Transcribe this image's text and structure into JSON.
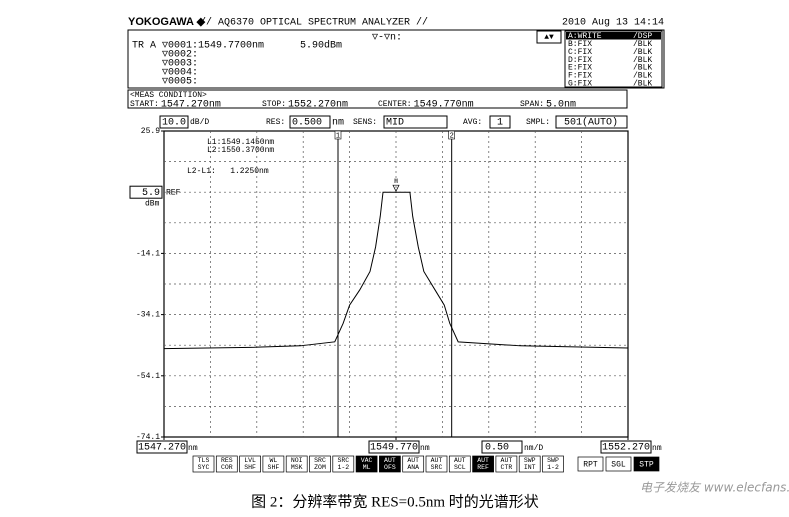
{
  "header": {
    "brand": "YOKOGAWA ◆",
    "title": "// AQ6370 OPTICAL SPECTRUM ANALYZER //",
    "datetime": "2010 Aug 13 14:14"
  },
  "marker_panel": {
    "trace": "TR A",
    "markers": [
      "▽0001:1549.7700nm",
      "▽0002:",
      "▽0003:",
      "▽0004:",
      "▽0005:"
    ],
    "marker1_level": "5.90dBm",
    "delta": "▽-▽n:",
    "arrows": "▲▼"
  },
  "trace_list": [
    {
      "trace": "A:WRITE",
      "mode": "/DSP",
      "active": true
    },
    {
      "trace": "B:FIX",
      "mode": "/BLK",
      "active": false
    },
    {
      "trace": "C:FIX",
      "mode": "/BLK",
      "active": false
    },
    {
      "trace": "D:FIX",
      "mode": "/BLK",
      "active": false
    },
    {
      "trace": "E:FIX",
      "mode": "/BLK",
      "active": false
    },
    {
      "trace": "F:FIX",
      "mode": "/BLK",
      "active": false
    },
    {
      "trace": "G:FIX",
      "mode": "/BLK",
      "active": false
    }
  ],
  "meas_condition": {
    "title": "<MEAS CONDITION>",
    "items": [
      {
        "label": "START:",
        "value": "1547.270nm"
      },
      {
        "label": "STOP:",
        "value": "1552.270nm"
      },
      {
        "label": "CENTER:",
        "value": "1549.770nm"
      },
      {
        "label": "SPAN:",
        "value": "5.0nm"
      }
    ]
  },
  "settings": {
    "scale": {
      "value": "10.0",
      "unit": "dB/D"
    },
    "res": {
      "label": "RES:",
      "value": "0.500",
      "unit": "nm"
    },
    "sens": {
      "label": "SENS:",
      "value": "MID"
    },
    "avg": {
      "label": "AVG:",
      "value": "1"
    },
    "smpl": {
      "label": "SMPL:",
      "value": "501(AUTO)"
    }
  },
  "chart_data": {
    "type": "line",
    "x": [
      1547.27,
      1548.2,
      1548.74,
      1549.11,
      1549.2,
      1549.27,
      1549.38,
      1549.49,
      1549.55,
      1549.6,
      1549.63,
      1549.92,
      1549.95,
      1550.01,
      1550.07,
      1550.19,
      1550.29,
      1550.35,
      1550.44,
      1551.11,
      1552.27
    ],
    "series": [
      {
        "name": "TR A",
        "color": "#000000",
        "values": [
          -45.2,
          -44.8,
          -44.3,
          -43.0,
          -37.0,
          -31.0,
          -26.0,
          -20.0,
          -12.0,
          -2.0,
          5.9,
          5.9,
          -2.0,
          -12.0,
          -20.0,
          -26.0,
          -31.0,
          -37.0,
          -43.0,
          -44.3,
          -45.0
        ]
      }
    ],
    "xlim": [
      1547.27,
      1552.27
    ],
    "ylim": [
      -74.1,
      25.9
    ],
    "xticks": [
      {
        "value": 1547.27,
        "label": "1547.270"
      },
      {
        "value": 1549.77,
        "label": "1549.770"
      },
      {
        "value": 1552.27,
        "label": "1552.270"
      }
    ],
    "yticks": [
      25.9,
      -14.1,
      -34.1,
      -54.1,
      -74.1
    ],
    "ref_level": 5.9,
    "ref_label": "REF",
    "y_unit": "dBm",
    "x_unit": "nm",
    "x_div": {
      "value": "0.50",
      "unit": "nm/D"
    },
    "grid": true,
    "line_markers": [
      {
        "name": "1",
        "x": 1549.145
      },
      {
        "name": "2",
        "x": 1550.37
      }
    ],
    "peak_marker": {
      "label": "M",
      "x": 1549.77,
      "y": 5.9
    },
    "annotations": [
      "L1:1549.1450nm",
      "L2:1550.3700nm",
      "L2-L1:   1.2250nm"
    ]
  },
  "soft_keys": [
    {
      "lines": [
        "TLS",
        "SYC"
      ],
      "active": false
    },
    {
      "lines": [
        "RES",
        "COR"
      ],
      "active": false
    },
    {
      "lines": [
        "LVL",
        "SHF"
      ],
      "active": false
    },
    {
      "lines": [
        "WL",
        "SHF"
      ],
      "active": false
    },
    {
      "lines": [
        "NOI",
        "MSK"
      ],
      "active": false
    },
    {
      "lines": [
        "SRC",
        "ZOM"
      ],
      "active": false
    },
    {
      "lines": [
        "SRC",
        "1-2"
      ],
      "active": false
    },
    {
      "lines": [
        "VAC",
        "ML"
      ],
      "active": true
    },
    {
      "lines": [
        "AUT",
        "OFS"
      ],
      "active": true
    },
    {
      "lines": [
        "AUT",
        "ANA"
      ],
      "active": false
    },
    {
      "lines": [
        "AUT",
        "SRC"
      ],
      "active": false
    },
    {
      "lines": [
        "AUT",
        "SCL"
      ],
      "active": false
    },
    {
      "lines": [
        "AUT",
        "REF"
      ],
      "active": true
    },
    {
      "lines": [
        "AUT",
        "CTR"
      ],
      "active": false
    },
    {
      "lines": [
        "SWP",
        "INT"
      ],
      "active": false
    },
    {
      "lines": [
        "SWP",
        "1-2"
      ],
      "active": false
    }
  ],
  "run_keys": [
    {
      "label": "RPT",
      "active": false
    },
    {
      "label": "SGL",
      "active": false
    },
    {
      "label": "STP",
      "active": true
    }
  ],
  "caption": "图 2：分辨率带宽 RES=0.5nm 时的光谱形状",
  "watermark": "电子发烧友 www.elecfans.com"
}
